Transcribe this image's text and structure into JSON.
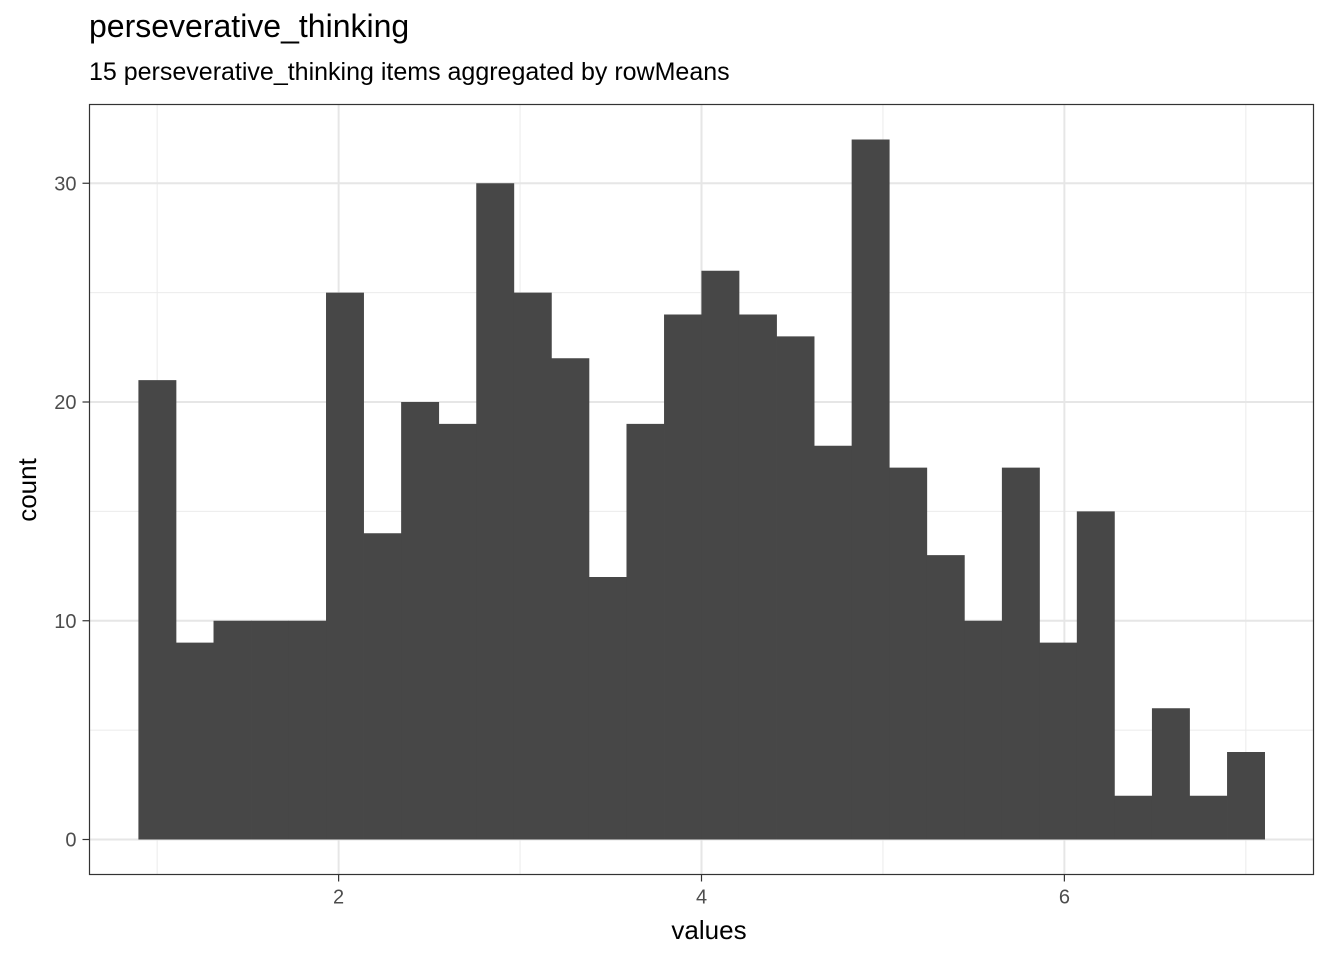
{
  "chart_data": {
    "type": "bar",
    "title": "perseverative_thinking",
    "subtitle": "15 perseverative_thinking items aggregated by rowMeans",
    "xlabel": "values",
    "ylabel": "count",
    "bin_width": 0.2069,
    "bins": [
      {
        "x": 1.0,
        "count": 21
      },
      {
        "x": 1.207,
        "count": 9
      },
      {
        "x": 1.414,
        "count": 10
      },
      {
        "x": 1.621,
        "count": 10
      },
      {
        "x": 1.828,
        "count": 10
      },
      {
        "x": 2.034,
        "count": 25
      },
      {
        "x": 2.241,
        "count": 14
      },
      {
        "x": 2.448,
        "count": 20
      },
      {
        "x": 2.655,
        "count": 19
      },
      {
        "x": 2.862,
        "count": 30
      },
      {
        "x": 3.069,
        "count": 25
      },
      {
        "x": 3.276,
        "count": 22
      },
      {
        "x": 3.483,
        "count": 12
      },
      {
        "x": 3.69,
        "count": 19
      },
      {
        "x": 3.897,
        "count": 24
      },
      {
        "x": 4.103,
        "count": 26
      },
      {
        "x": 4.31,
        "count": 24
      },
      {
        "x": 4.517,
        "count": 23
      },
      {
        "x": 4.724,
        "count": 18
      },
      {
        "x": 4.931,
        "count": 32
      },
      {
        "x": 5.138,
        "count": 17
      },
      {
        "x": 5.345,
        "count": 13
      },
      {
        "x": 5.552,
        "count": 10
      },
      {
        "x": 5.759,
        "count": 17
      },
      {
        "x": 5.966,
        "count": 9
      },
      {
        "x": 6.172,
        "count": 15
      },
      {
        "x": 6.379,
        "count": 2
      },
      {
        "x": 6.586,
        "count": 6
      },
      {
        "x": 6.793,
        "count": 2
      },
      {
        "x": 7.0,
        "count": 4
      }
    ],
    "x_ticks": [
      2,
      4,
      6
    ],
    "y_ticks": [
      0,
      10,
      20,
      30
    ],
    "xlim": [
      0.627,
      7.373
    ],
    "ylim": [
      -1.6,
      33.6
    ],
    "grid": true,
    "bar_color": "#474747"
  }
}
